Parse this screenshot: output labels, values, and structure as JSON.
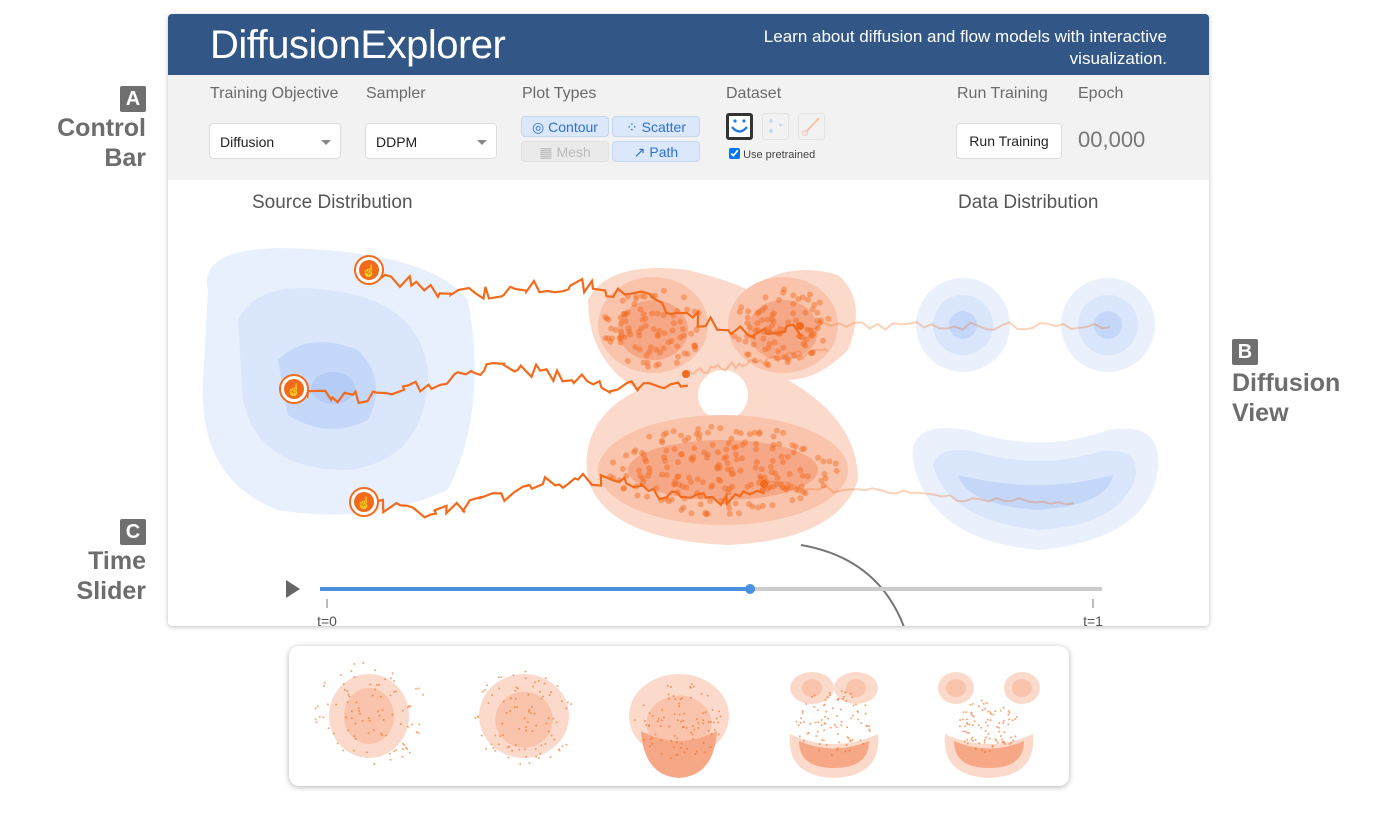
{
  "annotations": {
    "a": {
      "badge": "A",
      "line1": "Control",
      "line2": "Bar"
    },
    "b": {
      "badge": "B",
      "line1": "Diffusion",
      "line2": "View"
    },
    "c": {
      "badge": "C",
      "line1": "Time",
      "line2": "Slider"
    }
  },
  "header": {
    "title_bold": "Diffusion",
    "title_rest": "Explorer",
    "tagline": "Learn about diffusion and flow models with interactive visualization."
  },
  "controls": {
    "training_objective": {
      "label": "Training Objective",
      "value": "Diffusion"
    },
    "sampler": {
      "label": "Sampler",
      "value": "DDPM"
    },
    "plot_types": {
      "label": "Plot Types",
      "contour": "Contour",
      "scatter": "Scatter",
      "mesh": "Mesh",
      "path": "Path",
      "contour_on": true,
      "scatter_on": true,
      "mesh_on": false,
      "path_on": true
    },
    "dataset": {
      "label": "Dataset",
      "icons": [
        "smiley-icon",
        "clusters-icon",
        "brush-icon"
      ],
      "selected": "smiley-icon",
      "pretrained_label": "Use pretrained",
      "pretrained": true
    },
    "run": {
      "label": "Run Training",
      "button": "Run Training"
    },
    "epoch": {
      "label": "Epoch",
      "value": "00,000"
    }
  },
  "view": {
    "source_title": "Source Distribution",
    "data_title": "Data Distribution",
    "colors": {
      "source": "#a9c4f5",
      "data": "#f8b89c",
      "path": "#f26b1d"
    }
  },
  "slider": {
    "start": "t=0",
    "end": "t=1",
    "value": 0.55,
    "accent": "#4a8fe0"
  }
}
